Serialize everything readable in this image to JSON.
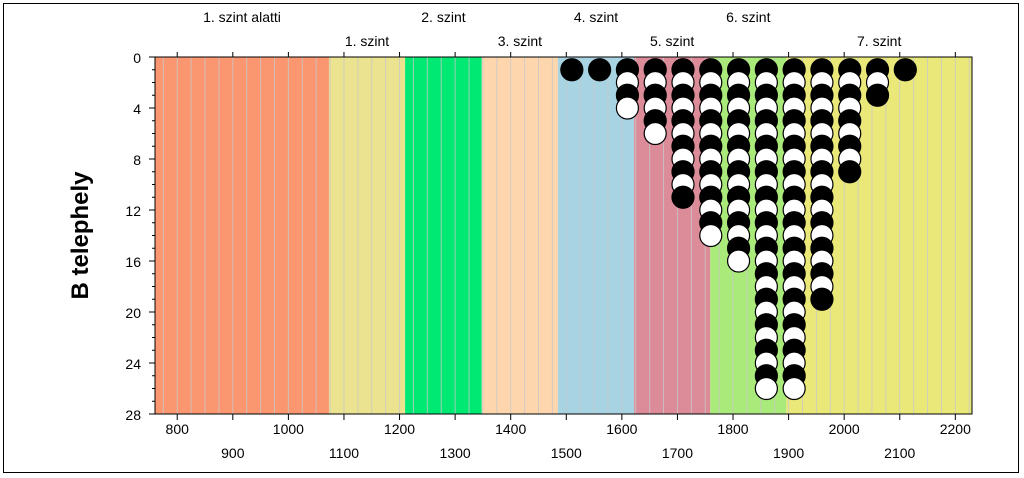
{
  "chart_data": {
    "type": "scatter",
    "ylabel": "B telephely",
    "xlim": [
      760,
      2230
    ],
    "ylim": [
      0,
      28
    ],
    "y_inverted": true,
    "x_ticks": [
      800,
      900,
      1000,
      1100,
      1200,
      1300,
      1400,
      1500,
      1600,
      1700,
      1800,
      1900,
      2000,
      2100,
      2200
    ],
    "y_ticks": [
      0,
      4,
      8,
      12,
      16,
      20,
      24,
      28
    ],
    "levels": [
      {
        "label": "1. szint alatti",
        "x0": 760,
        "x1": 1073,
        "color": "#fa9770",
        "label_row": "top"
      },
      {
        "label": "1. szint",
        "x0": 1073,
        "x1": 1210,
        "color": "#ebe38f",
        "label_row": "bottom"
      },
      {
        "label": "2. szint",
        "x0": 1210,
        "x1": 1348,
        "color": "#00ea73",
        "label_row": "top"
      },
      {
        "label": "3. szint",
        "x0": 1348,
        "x1": 1485,
        "color": "#fdd6ae",
        "label_row": "bottom"
      },
      {
        "label": "4. szint",
        "x0": 1485,
        "x1": 1622,
        "color": "#a7d3e3",
        "label_row": "top"
      },
      {
        "label": "5. szint",
        "x0": 1622,
        "x1": 1759,
        "color": "#dc8b99",
        "label_row": "bottom"
      },
      {
        "label": "6. szint",
        "x0": 1759,
        "x1": 1896,
        "color": "#aaea7a",
        "label_row": "top"
      },
      {
        "label": "7. szint",
        "x0": 1896,
        "x1": 2230,
        "color": "#ebe87a",
        "label_row": "bottom"
      }
    ],
    "columns": [
      {
        "x": 1510,
        "black": 1,
        "white": 0
      },
      {
        "x": 1560,
        "black": 1,
        "white": 0
      },
      {
        "x": 1610,
        "black": 2,
        "white": 2
      },
      {
        "x": 1660,
        "black": 3,
        "white": 3
      },
      {
        "x": 1710,
        "black": 6,
        "white": 5
      },
      {
        "x": 1760,
        "black": 7,
        "white": 7
      },
      {
        "x": 1810,
        "black": 8,
        "white": 8
      },
      {
        "x": 1860,
        "black": 13,
        "white": 13
      },
      {
        "x": 1910,
        "black": 13,
        "white": 13
      },
      {
        "x": 1960,
        "black": 10,
        "white": 9
      },
      {
        "x": 2010,
        "black": 5,
        "white": 4
      },
      {
        "x": 2060,
        "black": 2,
        "white": 1
      },
      {
        "x": 2110,
        "black": 1,
        "white": 0
      }
    ]
  }
}
